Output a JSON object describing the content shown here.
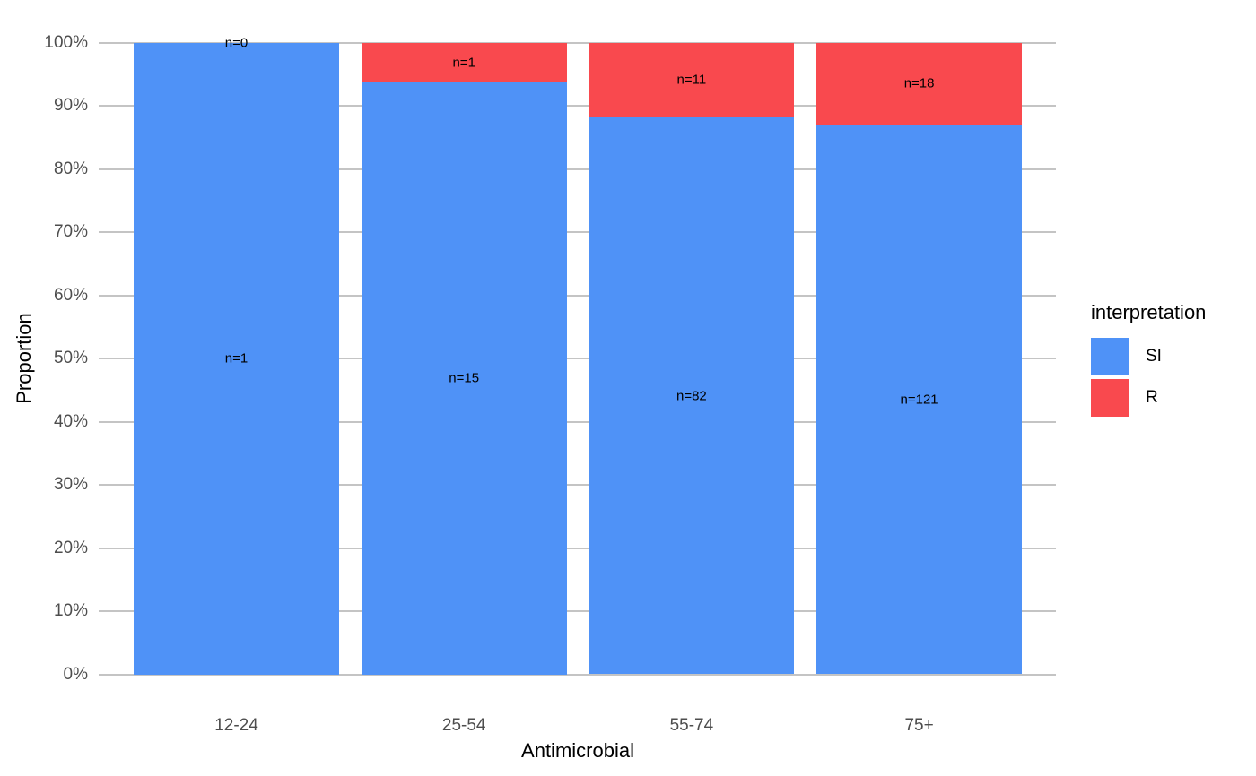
{
  "chart_data": {
    "type": "bar",
    "stacked": true,
    "orientation": "vertical",
    "title": "",
    "xlabel": "Antimicrobial",
    "ylabel": "Proportion",
    "ylim": [
      0,
      1
    ],
    "grid": "horizontal major gridlines every 10%, no minor gridlines, no axis ticks",
    "y_ticks": [
      "0%",
      "10%",
      "20%",
      "30%",
      "40%",
      "50%",
      "60%",
      "70%",
      "80%",
      "90%",
      "100%"
    ],
    "categories": [
      "12-24",
      "25-54",
      "55-74",
      "75+"
    ],
    "series": [
      {
        "name": "SI",
        "color": "#4F92F7",
        "counts": [
          1,
          15,
          82,
          121
        ],
        "bar_labels": [
          "n=1",
          "n=15",
          "n=82",
          "n=121"
        ],
        "proportions": [
          1.0,
          0.9375,
          0.8817,
          0.8705
        ]
      },
      {
        "name": "R",
        "color": "#F9494E",
        "counts": [
          0,
          1,
          11,
          18
        ],
        "bar_labels": [
          "n=0",
          "n=1",
          "n=11",
          "n=18"
        ],
        "proportions": [
          0.0,
          0.0625,
          0.1183,
          0.1295
        ]
      }
    ],
    "legend": {
      "title": "interpretation",
      "position": "right",
      "entries": [
        "SI",
        "R"
      ]
    }
  },
  "colors": {
    "background": "#FFFFFF",
    "gridline": "#C4C4C4",
    "tick_label": "#4D4D4D",
    "axis_title": "#000000",
    "bar_label": "#000000",
    "si_blue": "#4F92F7",
    "r_red": "#F9494E"
  }
}
